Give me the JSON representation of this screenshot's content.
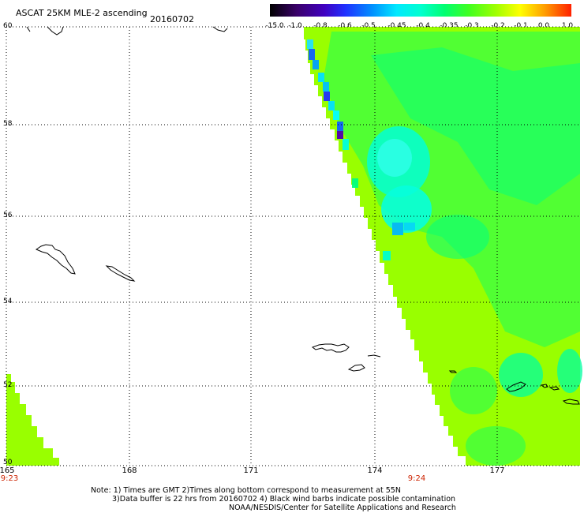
{
  "header": {
    "title": "ASCAT 25KM MLE-2 ascending",
    "date": "20160702"
  },
  "colorbar": {
    "labels": [
      "-15.0",
      "-1.0",
      "-0.8",
      "-0.6",
      "-0.5",
      "-0.45",
      "-0.4",
      "-0.35",
      "-0.3",
      "-0.2",
      "-0.1",
      "0.0",
      "1.0"
    ],
    "colors": [
      "#000000",
      "#3a006a",
      "#5a00b0",
      "#2030ff",
      "#0080ff",
      "#00d0ff",
      "#00ffe0",
      "#00ff80",
      "#30ff30",
      "#90ff00",
      "#ffff00",
      "#ffa000",
      "#ff3000"
    ]
  },
  "map": {
    "lat_labels": [
      "60",
      "58",
      "56",
      "54",
      "52",
      "50"
    ],
    "lon_labels": [
      "165",
      "168",
      "171",
      "174",
      "177"
    ],
    "times": [
      "9:23",
      "9:24"
    ],
    "field_color": "#99ff00",
    "lat_range": [
      50,
      60
    ],
    "lon_range": [
      165,
      178.5
    ]
  },
  "footer": {
    "note_line1": "Note: 1) Times are GMT 2)Times along bottom correspond to measurement at 55N",
    "note_line2": "3)Data buffer is 22 hrs from 20160702 4) Black wind barbs indicate possible contamination",
    "note_line3": "NOAA/NESDIS/Center for Satellite Applications and Research"
  }
}
